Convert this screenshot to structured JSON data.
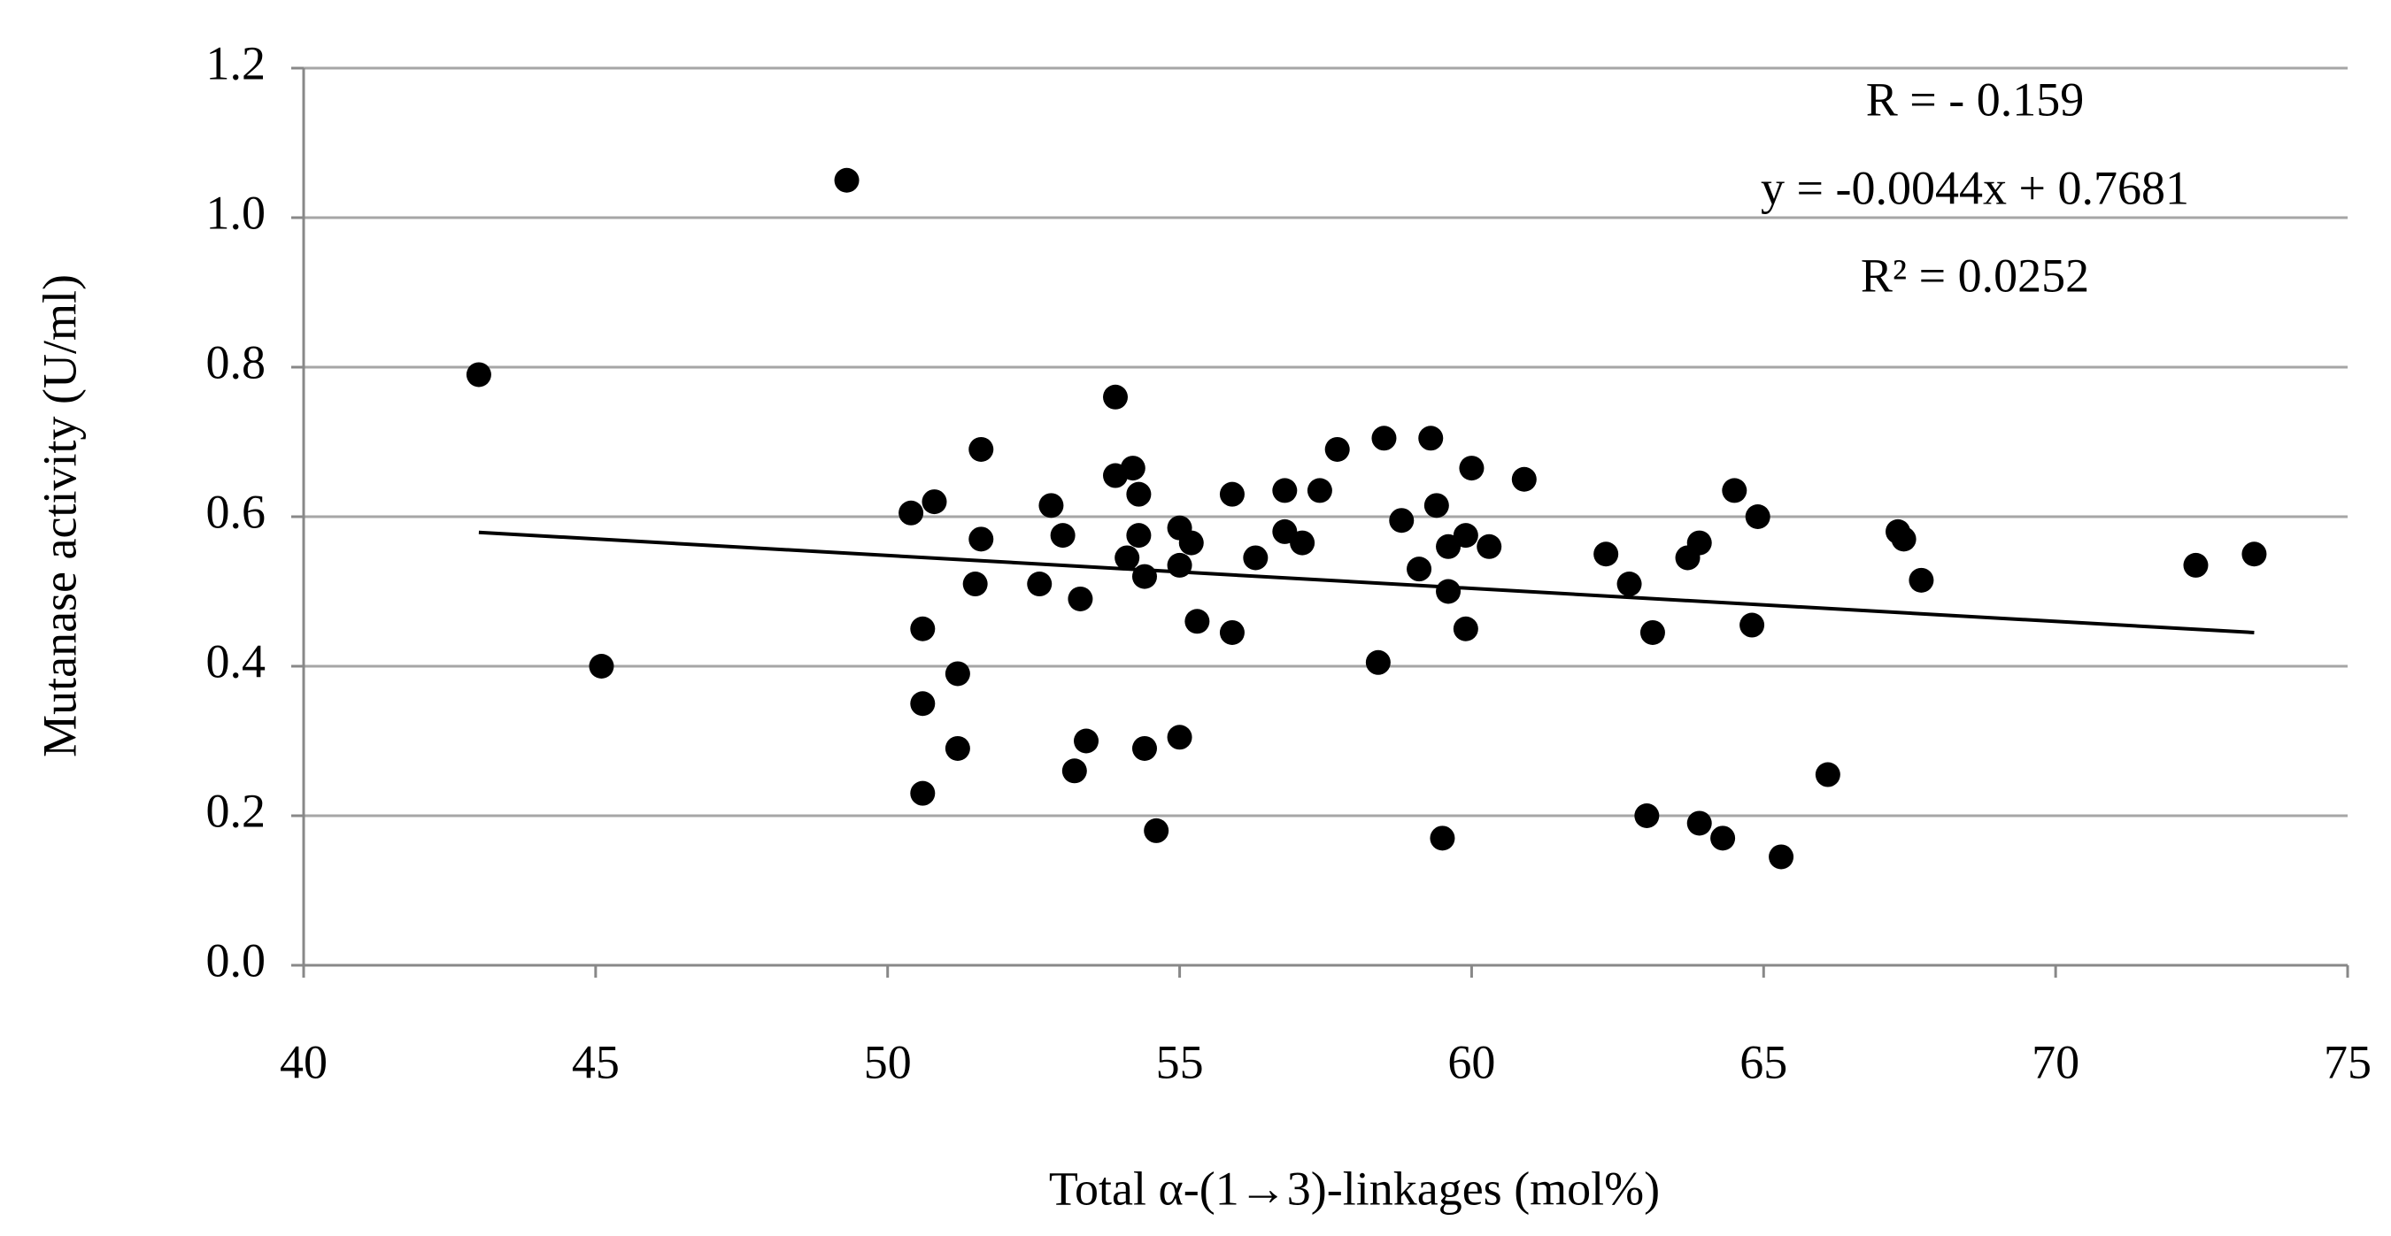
{
  "chart_data": {
    "type": "scatter",
    "x_label": "Total α-(1→3)-linkages  (mol%)",
    "y_label": "Mutanase activity (U/ml)",
    "annotations": [
      "R = - 0.159",
      "y = -0.0044x + 0.7681",
      "R² = 0.0252"
    ],
    "color": "#000000",
    "x": [
      43.0,
      49.3,
      45.1,
      50.4,
      50.8,
      50.6,
      50.6,
      50.6,
      51.2,
      51.2,
      51.6,
      51.6,
      51.5,
      52.6,
      52.8,
      53.0,
      53.3,
      53.2,
      53.4,
      53.9,
      53.9,
      54.2,
      54.3,
      54.1,
      54.3,
      54.4,
      54.4,
      54.6,
      55.0,
      55.0,
      55.2,
      55.0,
      55.3,
      55.9,
      55.9,
      56.3,
      56.8,
      56.8,
      57.1,
      57.4,
      57.7,
      58.5,
      58.4,
      58.8,
      59.1,
      59.3,
      59.4,
      59.6,
      59.6,
      59.5,
      59.9,
      60.0,
      59.9,
      60.3,
      60.9,
      62.3,
      62.7,
      63.1,
      63.0,
      63.7,
      63.9,
      63.9,
      64.3,
      64.5,
      64.9,
      64.8,
      65.3,
      66.1,
      67.3,
      67.4,
      67.7,
      72.4,
      73.4
    ],
    "values": [
      0.79,
      1.05,
      0.4,
      0.605,
      0.62,
      0.45,
      0.35,
      0.23,
      0.39,
      0.29,
      0.69,
      0.57,
      0.51,
      0.51,
      0.615,
      0.575,
      0.49,
      0.26,
      0.3,
      0.76,
      0.655,
      0.665,
      0.63,
      0.545,
      0.575,
      0.52,
      0.29,
      0.18,
      0.585,
      0.535,
      0.565,
      0.305,
      0.46,
      0.63,
      0.445,
      0.545,
      0.635,
      0.58,
      0.565,
      0.635,
      0.69,
      0.705,
      0.405,
      0.595,
      0.53,
      0.705,
      0.615,
      0.56,
      0.5,
      0.17,
      0.575,
      0.665,
      0.45,
      0.56,
      0.65,
      0.55,
      0.51,
      0.445,
      0.2,
      0.545,
      0.565,
      0.19,
      0.17,
      0.635,
      0.6,
      0.455,
      0.145,
      0.255,
      0.58,
      0.57,
      0.515,
      0.535,
      0.55
    ],
    "trendline": {
      "x": [
        43,
        73.4
      ],
      "values": [
        0.579,
        0.445
      ]
    },
    "xlim": [
      40,
      75
    ],
    "xticks": [
      40,
      45,
      50,
      55,
      60,
      65,
      70,
      75
    ],
    "ylim": [
      0,
      1.2
    ],
    "yticks": [
      {
        "value": 0,
        "label": "0.0"
      },
      0.2,
      0.4,
      0.6,
      0.8,
      {
        "value": 1,
        "label": "1.0"
      },
      1.2
    ],
    "grid": true
  }
}
